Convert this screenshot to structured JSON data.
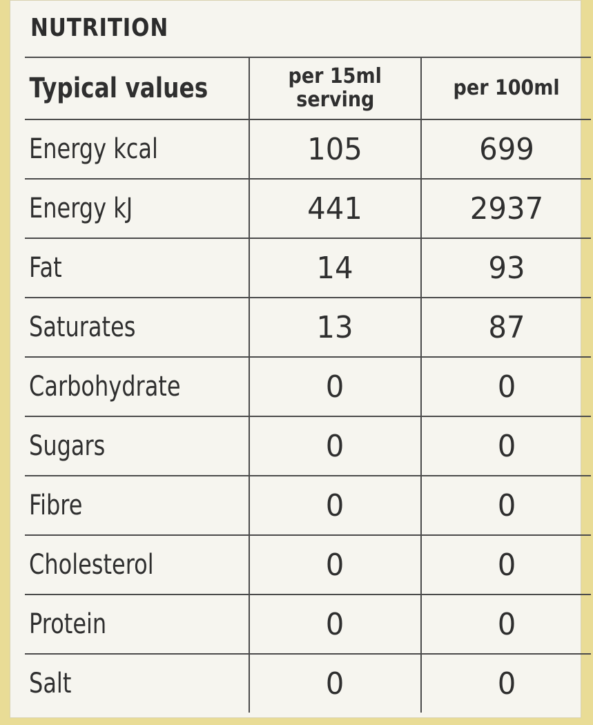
{
  "title": "NUTRITION",
  "header": {
    "label": "Typical values",
    "col1_line1": "per 15ml",
    "col1_line2": "serving",
    "col2": "per 100ml"
  },
  "rows": [
    {
      "name": "Energy kcal",
      "per_serving": "105",
      "per_100ml": "699"
    },
    {
      "name": "Energy kJ",
      "per_serving": "441",
      "per_100ml": "2937"
    },
    {
      "name": "Fat",
      "per_serving": "14",
      "per_100ml": "93"
    },
    {
      "name": "Saturates",
      "per_serving": "13",
      "per_100ml": "87"
    },
    {
      "name": "Carbohydrate",
      "per_serving": "0",
      "per_100ml": "0"
    },
    {
      "name": "Sugars",
      "per_serving": "0",
      "per_100ml": "0"
    },
    {
      "name": "Fibre",
      "per_serving": "0",
      "per_100ml": "0"
    },
    {
      "name": "Cholesterol",
      "per_serving": "0",
      "per_100ml": "0"
    },
    {
      "name": "Protein",
      "per_serving": "0",
      "per_100ml": "0"
    },
    {
      "name": "Salt",
      "per_serving": "0",
      "per_100ml": "0"
    }
  ]
}
